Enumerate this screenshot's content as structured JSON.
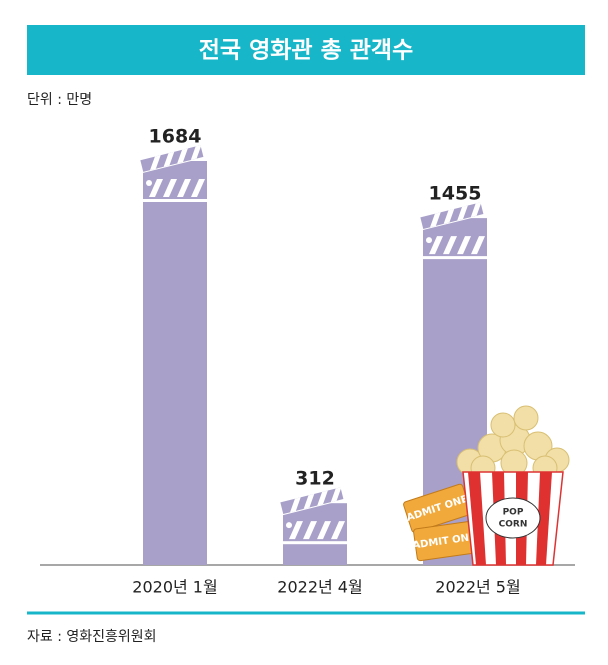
{
  "chart_data": {
    "type": "bar",
    "title": "전국 영화관 총 관객수",
    "unit_label": "단위 : 만명",
    "source": "자료 : 영화진흥위원회",
    "categories": [
      "2020년 1월",
      "2022년 4월",
      "2022년 5월"
    ],
    "values": [
      1684,
      312,
      1455
    ],
    "color": "#a9a0c9"
  }
}
